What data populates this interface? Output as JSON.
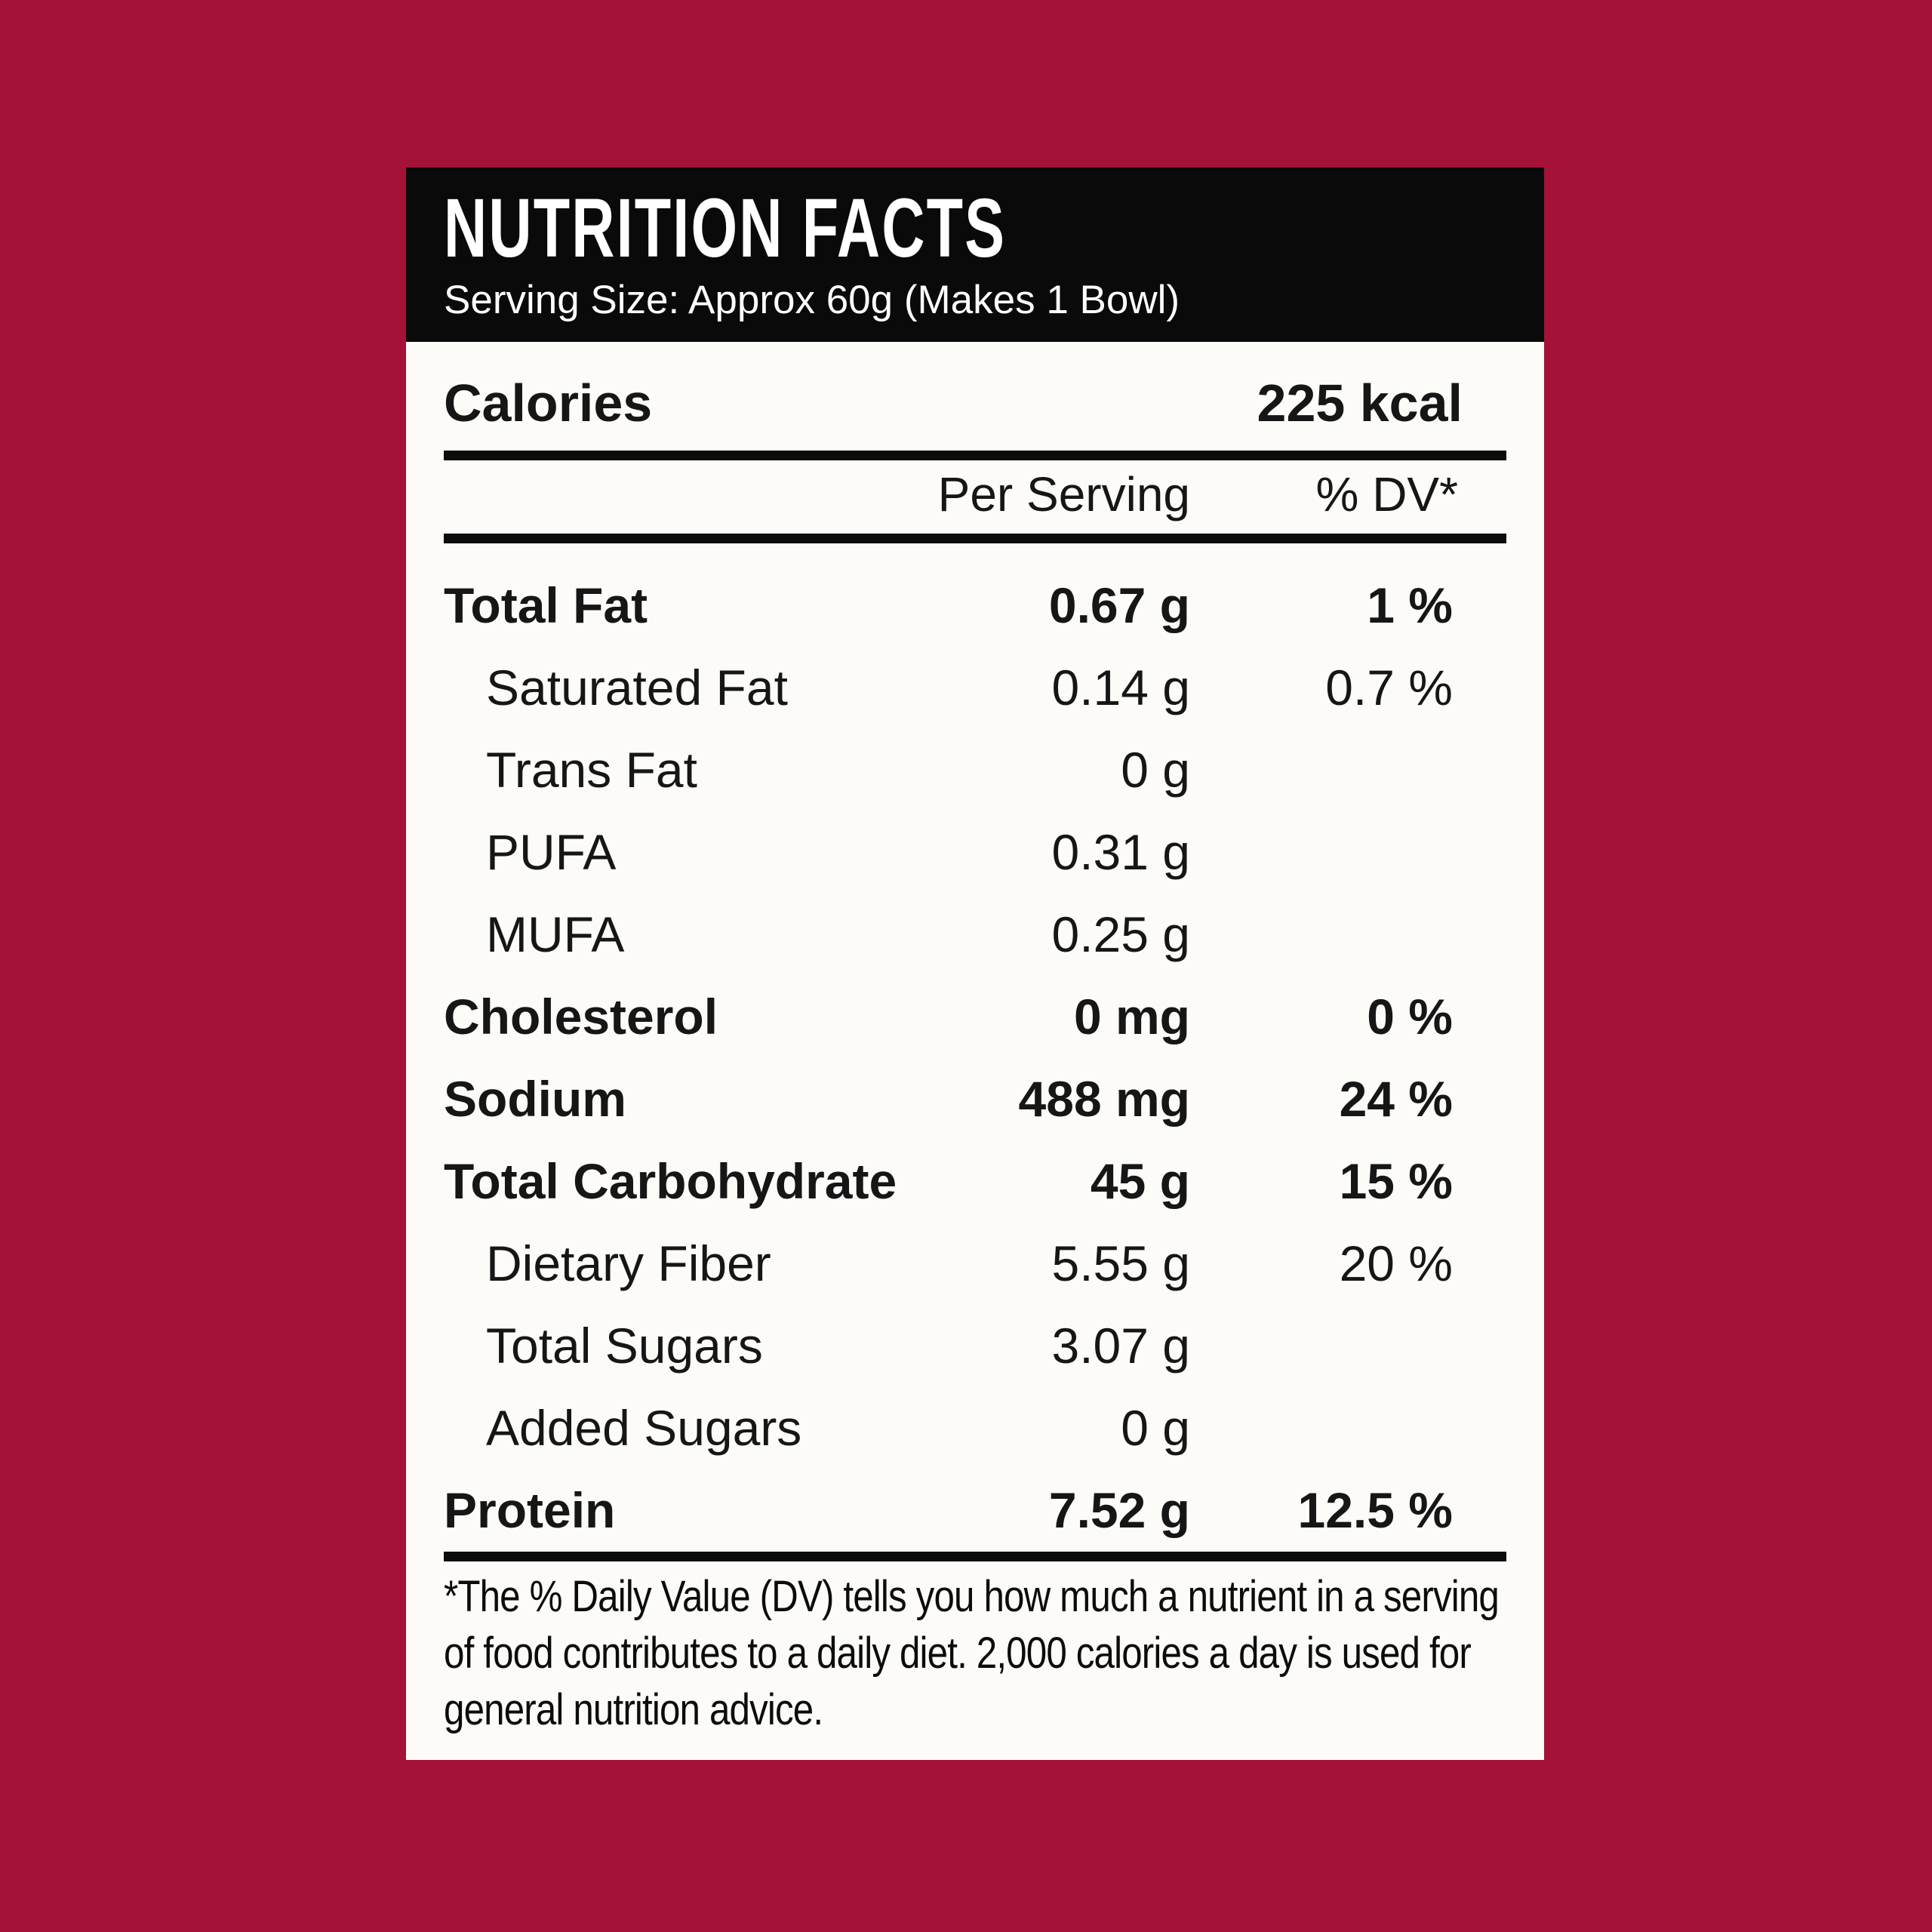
{
  "colors": {
    "background": "#A51237",
    "panel": "#FCFBF8",
    "header_bg": "#0A0A0A",
    "header_text": "#FFFFFF",
    "text": "#161616"
  },
  "label": {
    "title": "NUTRITION FACTS",
    "serving_size": "Serving Size: Approx 60g (Makes 1 Bowl)",
    "calories": {
      "label": "Calories",
      "value": "225 kcal"
    },
    "columns": {
      "amount": "Per Serving",
      "dv": "% DV*"
    },
    "rows": [
      {
        "name": "Total Fat",
        "amount": "0.67 g",
        "dv": "1 %",
        "bold": true,
        "indent": false
      },
      {
        "name": "Saturated Fat",
        "amount": "0.14 g",
        "dv": "0.7 %",
        "bold": false,
        "indent": true
      },
      {
        "name": "Trans Fat",
        "amount": "0 g",
        "dv": "",
        "bold": false,
        "indent": true
      },
      {
        "name": "PUFA",
        "amount": "0.31 g",
        "dv": "",
        "bold": false,
        "indent": true
      },
      {
        "name": "MUFA",
        "amount": "0.25 g",
        "dv": "",
        "bold": false,
        "indent": true
      },
      {
        "name": "Cholesterol",
        "amount": "0 mg",
        "dv": "0 %",
        "bold": true,
        "indent": false
      },
      {
        "name": "Sodium",
        "amount": "488 mg",
        "dv": "24 %",
        "bold": true,
        "indent": false
      },
      {
        "name": "Total Carbohydrate",
        "amount": "45 g",
        "dv": "15 %",
        "bold": true,
        "indent": false
      },
      {
        "name": "Dietary Fiber",
        "amount": "5.55 g",
        "dv": "20 %",
        "bold": false,
        "indent": true
      },
      {
        "name": "Total Sugars",
        "amount": "3.07 g",
        "dv": "",
        "bold": false,
        "indent": true
      },
      {
        "name": "Added Sugars",
        "amount": "0 g",
        "dv": "",
        "bold": false,
        "indent": true
      },
      {
        "name": "Protein",
        "amount": "7.52 g",
        "dv": "12.5 %",
        "bold": true,
        "indent": false
      }
    ],
    "footnote": "*The % Daily Value (DV) tells you how much a nutrient in a serving of food contributes to a daily diet. 2,000 calories a day is used for general nutrition advice."
  }
}
